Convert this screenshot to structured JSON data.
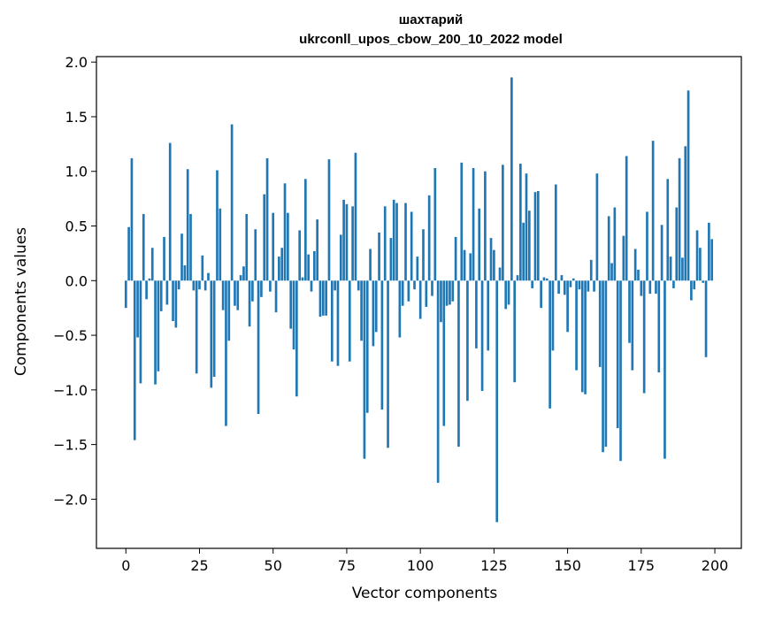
{
  "chart_data": {
    "type": "bar",
    "title_line1": "шахтарий",
    "title_line2": "ukrconll_upos_cbow_200_10_2022 model",
    "xlabel": "Vector components",
    "ylabel": "Components values",
    "xlim": [
      -10,
      209
    ],
    "ylim": [
      -2.45,
      2.05
    ],
    "xticks": [
      0,
      25,
      50,
      75,
      100,
      125,
      150,
      175,
      200
    ],
    "xtick_labels": [
      "0",
      "25",
      "50",
      "75",
      "100",
      "125",
      "150",
      "175",
      "200"
    ],
    "yticks": [
      2.0,
      1.5,
      1.0,
      0.5,
      0.0,
      -0.5,
      -1.0,
      -1.5,
      -2.0
    ],
    "ytick_labels": [
      "2.0",
      "1.5",
      "1.0",
      "0.5",
      "0.0",
      "−0.5",
      "−1.0",
      "−1.5",
      "−2.0"
    ],
    "bar_color": "#1f77b4",
    "grid": false,
    "values": [
      -0.25,
      0.49,
      1.12,
      -1.46,
      -0.52,
      -0.94,
      0.61,
      -0.17,
      0.02,
      0.3,
      -0.95,
      -0.83,
      -0.28,
      0.4,
      -0.22,
      1.26,
      -0.37,
      -0.43,
      -0.08,
      0.43,
      0.14,
      1.02,
      0.61,
      -0.09,
      -0.85,
      -0.08,
      0.23,
      -0.09,
      0.07,
      -0.98,
      -0.88,
      1.01,
      0.66,
      -0.27,
      -1.33,
      -0.55,
      1.43,
      -0.23,
      -0.27,
      0.05,
      0.13,
      0.61,
      -0.42,
      -0.19,
      0.47,
      -1.22,
      -0.15,
      0.79,
      1.12,
      -0.1,
      0.62,
      -0.29,
      0.22,
      0.3,
      0.89,
      0.62,
      -0.44,
      -0.63,
      -1.06,
      0.46,
      0.03,
      0.93,
      0.24,
      -0.1,
      0.27,
      0.56,
      -0.33,
      -0.32,
      -0.32,
      1.11,
      -0.74,
      -0.09,
      -0.78,
      0.42,
      0.74,
      0.7,
      -0.74,
      0.68,
      1.17,
      -0.09,
      -0.55,
      -1.63,
      -1.21,
      0.29,
      -0.6,
      -0.47,
      0.44,
      -1.18,
      0.68,
      -1.53,
      0.39,
      0.74,
      0.71,
      -0.52,
      -0.23,
      0.71,
      -0.19,
      0.63,
      -0.08,
      0.22,
      -0.35,
      0.47,
      -0.24,
      0.78,
      -0.14,
      1.03,
      -1.85,
      -0.38,
      -1.33,
      -0.23,
      -0.22,
      -0.19,
      0.4,
      -1.52,
      1.08,
      0.28,
      -1.1,
      0.25,
      1.03,
      -0.62,
      0.66,
      -1.01,
      1.0,
      -0.64,
      0.39,
      0.28,
      -2.21,
      0.12,
      1.06,
      -0.26,
      -0.22,
      1.86,
      -0.93,
      0.05,
      1.07,
      0.53,
      0.98,
      0.64,
      -0.07,
      0.81,
      0.82,
      -0.25,
      0.03,
      0.02,
      -1.17,
      -0.64,
      0.88,
      -0.12,
      0.05,
      -0.13,
      -0.47,
      -0.06,
      0.02,
      -0.82,
      -0.08,
      -1.02,
      -1.04,
      -0.1,
      0.19,
      -0.1,
      0.98,
      -0.79,
      -1.57,
      -1.52,
      0.59,
      0.16,
      0.67,
      -1.35,
      -1.65,
      0.41,
      1.14,
      -0.57,
      -0.82,
      0.29,
      0.1,
      -0.14,
      -1.03,
      0.63,
      -0.12,
      1.28,
      -0.12,
      -0.84,
      0.51,
      -1.63,
      0.93,
      0.22,
      -0.07,
      0.67,
      1.12,
      0.21,
      1.23,
      1.74,
      -0.18,
      -0.08,
      0.46,
      0.3,
      -0.02,
      -0.7,
      0.53,
      0.38
    ]
  }
}
